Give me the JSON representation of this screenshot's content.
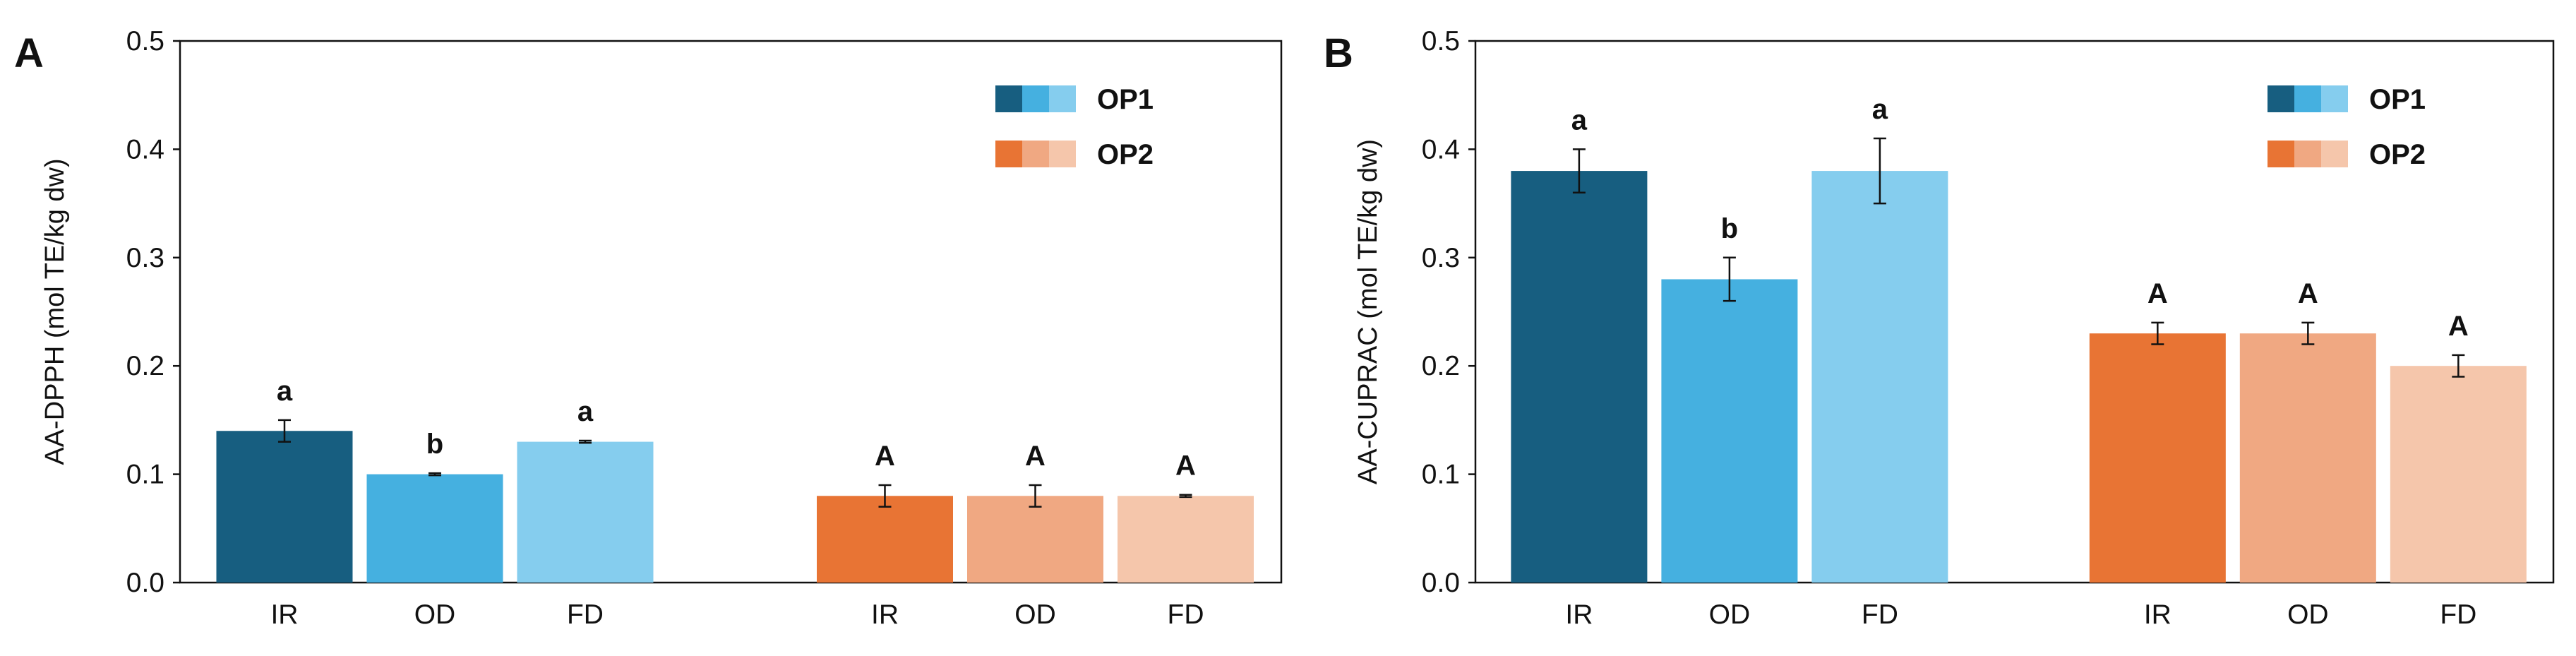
{
  "chart_data": [
    {
      "type": "bar",
      "panel_label": "A",
      "ylabel": "AA-DPPH (mol TE/kg dw)",
      "ylim": [
        0,
        0.5
      ],
      "yticks": [
        "0.0",
        "0.1",
        "0.2",
        "0.3",
        "0.4",
        "0.5"
      ],
      "legend": {
        "position": "top-right",
        "entries": [
          "OP1",
          "OP2"
        ]
      },
      "groups": [
        {
          "name": "OP1",
          "categories": [
            "IR",
            "OD",
            "FD"
          ],
          "values": [
            0.14,
            0.1,
            0.13
          ],
          "errors": [
            0.01,
            0.001,
            0.001
          ],
          "labels": [
            "a",
            "b",
            "a"
          ],
          "colors": [
            "#175e80",
            "#45b0e0",
            "#85cdee"
          ]
        },
        {
          "name": "OP2",
          "categories": [
            "IR",
            "OD",
            "FD"
          ],
          "values": [
            0.08,
            0.08,
            0.08
          ],
          "errors": [
            0.01,
            0.01,
            0.001
          ],
          "labels": [
            "A",
            "A",
            "A"
          ],
          "colors": [
            "#e87434",
            "#f0a882",
            "#f5c6ab"
          ]
        }
      ]
    },
    {
      "type": "bar",
      "panel_label": "B",
      "ylabel": "AA-CUPRAC (mol TE/kg dw)",
      "ylim": [
        0,
        0.5
      ],
      "yticks": [
        "0.0",
        "0.1",
        "0.2",
        "0.3",
        "0.4",
        "0.5"
      ],
      "legend": {
        "position": "top-right",
        "entries": [
          "OP1",
          "OP2"
        ]
      },
      "groups": [
        {
          "name": "OP1",
          "categories": [
            "IR",
            "OD",
            "FD"
          ],
          "values": [
            0.38,
            0.28,
            0.38
          ],
          "errors": [
            0.02,
            0.02,
            0.03
          ],
          "labels": [
            "a",
            "b",
            "a"
          ],
          "colors": [
            "#175e80",
            "#45b0e0",
            "#85cdee"
          ]
        },
        {
          "name": "OP2",
          "categories": [
            "IR",
            "OD",
            "FD"
          ],
          "values": [
            0.23,
            0.23,
            0.2
          ],
          "errors": [
            0.01,
            0.01,
            0.01
          ],
          "labels": [
            "A",
            "A",
            "A"
          ],
          "colors": [
            "#e87434",
            "#f0a882",
            "#f5c6ab"
          ]
        }
      ]
    }
  ]
}
